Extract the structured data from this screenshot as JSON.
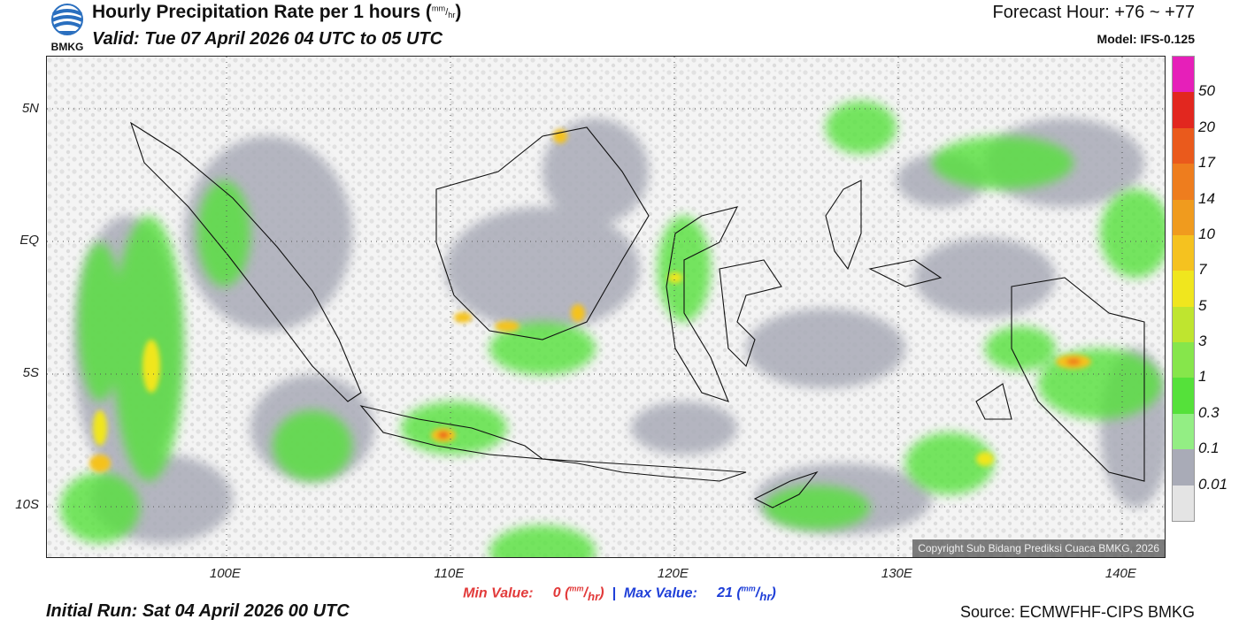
{
  "header": {
    "title": "Hourly Precipitation Rate per 1 hours",
    "title_unit_num": "mm",
    "title_unit_den": "hr",
    "valid": "Valid: Tue 07 April 2026 04 UTC to 05 UTC",
    "forecast_hour": "Forecast Hour: +76 ~ +77",
    "model": "Model: IFS-0.125",
    "logo_text": "BMKG"
  },
  "map": {
    "lat_labels": [
      "5N",
      "EQ",
      "5S",
      "10S"
    ],
    "lon_labels": [
      "100E",
      "110E",
      "120E",
      "130E",
      "140E"
    ],
    "lat_values": [
      5,
      0,
      -5,
      -10
    ],
    "lon_values": [
      100,
      110,
      120,
      130,
      140
    ],
    "extent": {
      "lon_min": 92,
      "lon_max": 142,
      "lat_min": -12,
      "lat_max": 7
    },
    "copyright": "Copyright Sub Bidang Prediksi Cuaca BMKG, 2026"
  },
  "legend": {
    "labels": [
      "50",
      "20",
      "17",
      "14",
      "10",
      "7",
      "5",
      "3",
      "1",
      "0.3",
      "0.1",
      "0.01"
    ],
    "colors": [
      "#e61fb9",
      "#e2271f",
      "#ea5a1c",
      "#ee7d1e",
      "#f09b1e",
      "#f5c21f",
      "#f0e61e",
      "#bfe52f",
      "#86e64b",
      "#55e13a",
      "#93ee84",
      "#a9abb7",
      "#e4e4e4"
    ]
  },
  "footer": {
    "min_label": "Min Value:",
    "min_value": "0",
    "max_label": "Max Value:",
    "max_value": "21",
    "unit_num": "mm",
    "unit_den": "hr",
    "initial_run": "Initial Run: Sat 04 April 2026 00 UTC",
    "source": "Source: ECMWFHF-CIPS BMKG"
  }
}
